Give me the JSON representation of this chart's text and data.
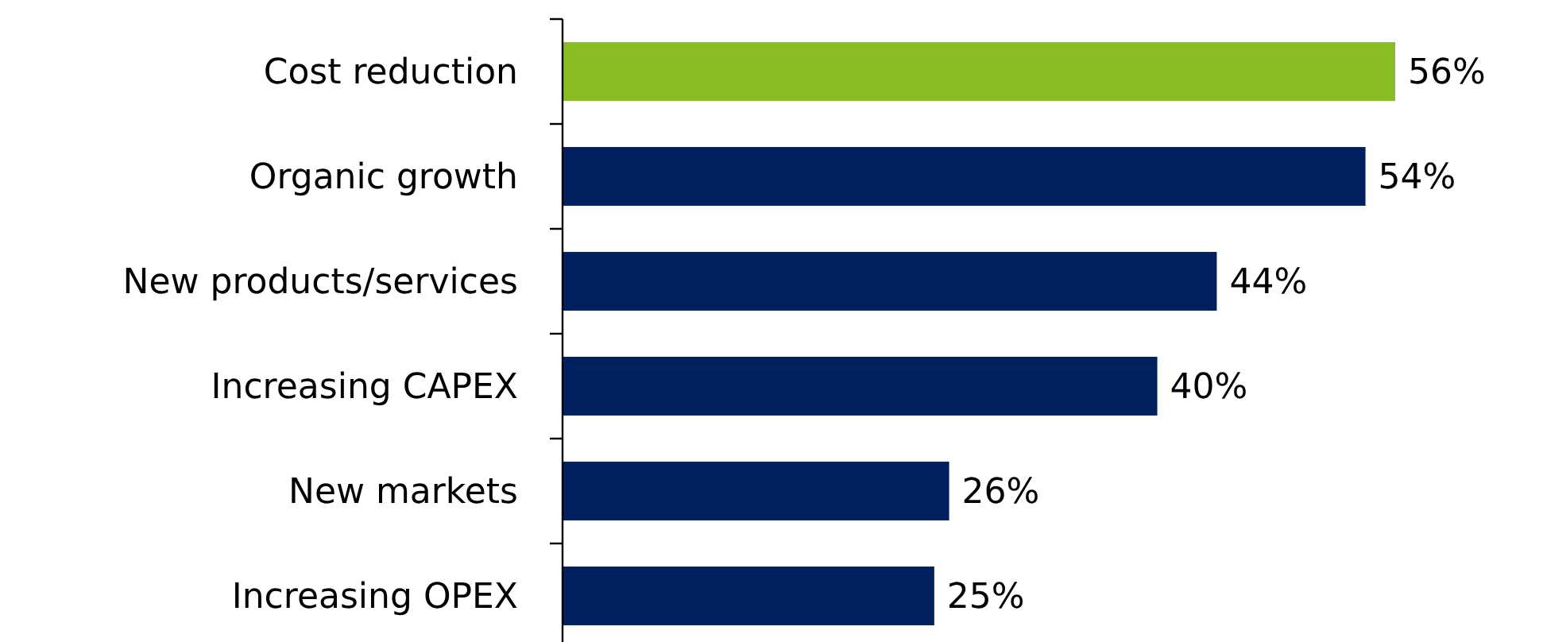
{
  "chart_data": {
    "type": "bar",
    "orientation": "horizontal",
    "categories": [
      "Cost reduction",
      "Organic growth",
      "New products/services",
      "Increasing CAPEX",
      "New markets",
      "Increasing OPEX"
    ],
    "values": [
      56,
      54,
      44,
      40,
      26,
      25
    ],
    "colors": [
      "#8abd24",
      "#002060",
      "#002060",
      "#002060",
      "#002060",
      "#002060"
    ],
    "value_labels": [
      "56%",
      "54%",
      "44%",
      "40%",
      "26%",
      "25%"
    ]
  }
}
